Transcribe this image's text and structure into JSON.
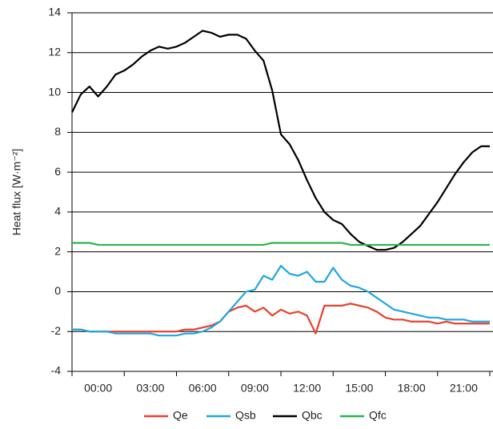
{
  "chart_data": {
    "type": "line",
    "y_label": "Heat flux [W·m⁻²]",
    "x": [
      0,
      0.5,
      1,
      1.5,
      2,
      2.5,
      3,
      3.5,
      4,
      4.5,
      5,
      5.5,
      6,
      6.5,
      7,
      7.5,
      8,
      8.5,
      9,
      9.5,
      10,
      10.5,
      11,
      11.5,
      12,
      12.5,
      13,
      13.5,
      14,
      14.5,
      15,
      15.5,
      16,
      16.5,
      17,
      17.5,
      18,
      18.5,
      19,
      19.5,
      20,
      20.5,
      21,
      21.5,
      22,
      22.5,
      23,
      23.5,
      24
    ],
    "xlim": [
      0,
      24
    ],
    "xticks": [
      {
        "value": 0,
        "label": "00:00"
      },
      {
        "value": 3,
        "label": "03:00"
      },
      {
        "value": 6,
        "label": "06:00"
      },
      {
        "value": 9,
        "label": "09:00"
      },
      {
        "value": 12,
        "label": "12:00"
      },
      {
        "value": 15,
        "label": "15:00"
      },
      {
        "value": 18,
        "label": "18:00"
      },
      {
        "value": 21,
        "label": "21:00"
      }
    ],
    "ylim": [
      -4,
      14
    ],
    "yticks": [
      -4,
      -2,
      0,
      2,
      4,
      6,
      8,
      10,
      12,
      14
    ],
    "grid": true,
    "legend": "bottom",
    "series": [
      {
        "name": "Qe",
        "color": "#e8412c",
        "values": [
          -1.9,
          -1.9,
          -2.0,
          -2.0,
          -2.0,
          -2.0,
          -2.0,
          -2.0,
          -2.0,
          -2.0,
          -2.0,
          -2.0,
          -2.0,
          -1.9,
          -1.9,
          -1.8,
          -1.7,
          -1.5,
          -1.0,
          -0.8,
          -0.7,
          -1.0,
          -0.8,
          -1.2,
          -0.9,
          -1.1,
          -1.0,
          -1.2,
          -2.1,
          -0.7,
          -0.7,
          -0.7,
          -0.6,
          -0.7,
          -0.8,
          -1.0,
          -1.3,
          -1.4,
          -1.4,
          -1.5,
          -1.5,
          -1.5,
          -1.6,
          -1.5,
          -1.6,
          -1.6,
          -1.6,
          -1.6,
          -1.6
        ]
      },
      {
        "name": "Qsb",
        "color": "#1ea7e1",
        "values": [
          -1.9,
          -1.9,
          -2.0,
          -2.0,
          -2.0,
          -2.1,
          -2.1,
          -2.1,
          -2.1,
          -2.1,
          -2.2,
          -2.2,
          -2.2,
          -2.1,
          -2.1,
          -2.0,
          -1.8,
          -1.5,
          -1.0,
          -0.5,
          0.0,
          0.1,
          0.8,
          0.6,
          1.3,
          0.9,
          0.8,
          1.0,
          0.5,
          0.5,
          1.2,
          0.6,
          0.3,
          0.2,
          0.0,
          -0.3,
          -0.6,
          -0.9,
          -1.0,
          -1.1,
          -1.2,
          -1.3,
          -1.3,
          -1.4,
          -1.4,
          -1.4,
          -1.5,
          -1.5,
          -1.5
        ]
      },
      {
        "name": "Qbc",
        "color": "#000000",
        "values": [
          9.0,
          9.9,
          10.3,
          9.8,
          10.3,
          10.9,
          11.1,
          11.4,
          11.8,
          12.1,
          12.3,
          12.2,
          12.3,
          12.5,
          12.8,
          13.1,
          13.0,
          12.8,
          12.9,
          12.9,
          12.7,
          12.1,
          11.6,
          10.1,
          7.9,
          7.4,
          6.6,
          5.6,
          4.7,
          4.0,
          3.6,
          3.4,
          2.9,
          2.5,
          2.3,
          2.1,
          2.1,
          2.2,
          2.5,
          2.9,
          3.3,
          3.9,
          4.5,
          5.2,
          5.9,
          6.5,
          7.0,
          7.3,
          7.3
        ]
      },
      {
        "name": "Qfc",
        "color": "#2db34a",
        "values": [
          2.45,
          2.45,
          2.45,
          2.35,
          2.35,
          2.35,
          2.35,
          2.35,
          2.35,
          2.35,
          2.35,
          2.35,
          2.35,
          2.35,
          2.35,
          2.35,
          2.35,
          2.35,
          2.35,
          2.35,
          2.35,
          2.35,
          2.35,
          2.45,
          2.45,
          2.45,
          2.45,
          2.45,
          2.45,
          2.45,
          2.45,
          2.45,
          2.35,
          2.35,
          2.35,
          2.35,
          2.35,
          2.35,
          2.35,
          2.35,
          2.35,
          2.35,
          2.35,
          2.35,
          2.35,
          2.35,
          2.35,
          2.35,
          2.35
        ]
      }
    ]
  }
}
